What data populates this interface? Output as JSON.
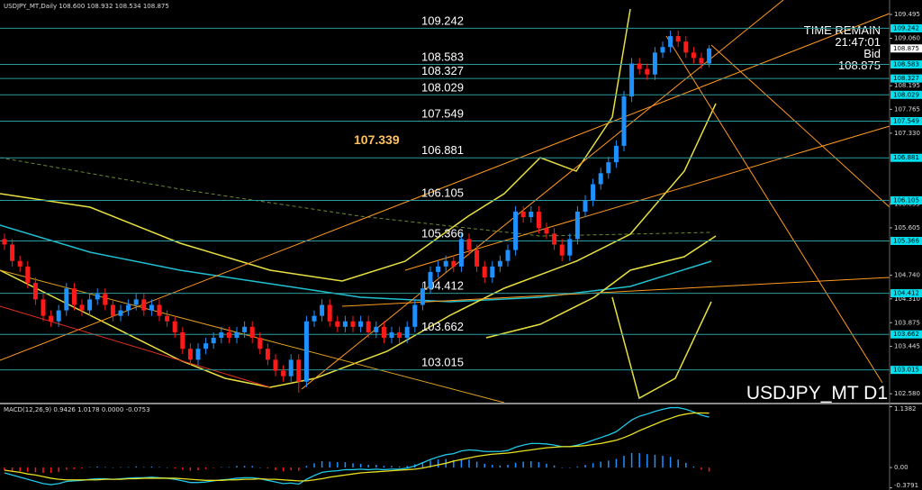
{
  "chart_data": [
    {
      "type": "candlestick",
      "title": "USDJPY_MT,Daily  108.600 108.932 108.534 108.875",
      "up_color": "#1e90ff",
      "down_color": "#ff1a1a",
      "ohlc": [
        [
          105.4,
          105.5,
          105.2,
          105.3
        ],
        [
          105.3,
          105.4,
          104.9,
          105.0
        ],
        [
          105.0,
          105.1,
          104.8,
          104.9
        ],
        [
          104.9,
          105.0,
          104.5,
          104.6
        ],
        [
          104.6,
          104.7,
          104.2,
          104.3
        ],
        [
          104.3,
          104.4,
          103.9,
          104.0
        ],
        [
          104.0,
          104.1,
          103.8,
          103.9
        ],
        [
          103.9,
          104.2,
          103.8,
          104.1
        ],
        [
          104.1,
          104.6,
          104.0,
          104.5
        ],
        [
          104.5,
          104.6,
          104.1,
          104.2
        ],
        [
          104.2,
          104.3,
          104.0,
          104.1
        ],
        [
          104.1,
          104.4,
          104.0,
          104.3
        ],
        [
          104.3,
          104.5,
          104.2,
          104.4
        ],
        [
          104.4,
          104.5,
          104.1,
          104.2
        ],
        [
          104.2,
          104.3,
          103.9,
          104.0
        ],
        [
          104.0,
          104.2,
          103.9,
          104.1
        ],
        [
          104.1,
          104.3,
          104.0,
          104.2
        ],
        [
          104.2,
          104.4,
          104.1,
          104.3
        ],
        [
          104.3,
          104.4,
          104.0,
          104.1
        ],
        [
          104.1,
          104.3,
          104.0,
          104.2
        ],
        [
          104.2,
          104.3,
          103.9,
          104.0
        ],
        [
          104.0,
          104.1,
          103.8,
          103.9
        ],
        [
          103.9,
          104.0,
          103.6,
          103.7
        ],
        [
          103.7,
          103.8,
          103.3,
          103.4
        ],
        [
          103.4,
          103.5,
          103.1,
          103.2
        ],
        [
          103.2,
          103.5,
          103.1,
          103.4
        ],
        [
          103.4,
          103.6,
          103.3,
          103.5
        ],
        [
          103.5,
          103.7,
          103.4,
          103.6
        ],
        [
          103.6,
          103.8,
          103.5,
          103.7
        ],
        [
          103.7,
          103.8,
          103.5,
          103.6
        ],
        [
          103.6,
          103.8,
          103.5,
          103.7
        ],
        [
          103.7,
          103.9,
          103.6,
          103.8
        ],
        [
          103.8,
          103.9,
          103.5,
          103.6
        ],
        [
          103.6,
          103.7,
          103.3,
          103.4
        ],
        [
          103.4,
          103.5,
          103.1,
          103.2
        ],
        [
          103.2,
          103.3,
          102.9,
          103.0
        ],
        [
          103.0,
          103.1,
          102.8,
          102.9
        ],
        [
          102.9,
          103.3,
          102.8,
          103.2
        ],
        [
          103.2,
          103.3,
          102.6,
          102.8
        ],
        [
          102.8,
          104.0,
          102.7,
          103.9
        ],
        [
          103.9,
          104.1,
          103.8,
          104.0
        ],
        [
          104.0,
          104.3,
          103.9,
          104.2
        ],
        [
          104.2,
          104.3,
          103.8,
          103.9
        ],
        [
          103.9,
          104.0,
          103.7,
          103.8
        ],
        [
          103.8,
          104.0,
          103.7,
          103.9
        ],
        [
          103.9,
          104.0,
          103.7,
          103.8
        ],
        [
          103.8,
          104.0,
          103.7,
          103.9
        ],
        [
          103.9,
          104.0,
          103.6,
          103.7
        ],
        [
          103.7,
          103.9,
          103.6,
          103.8
        ],
        [
          103.8,
          103.9,
          103.5,
          103.6
        ],
        [
          103.6,
          103.8,
          103.5,
          103.7
        ],
        [
          103.7,
          103.8,
          103.5,
          103.6
        ],
        [
          103.6,
          103.9,
          103.5,
          103.8
        ],
        [
          103.8,
          104.3,
          103.7,
          104.2
        ],
        [
          104.2,
          104.6,
          104.1,
          104.5
        ],
        [
          104.5,
          104.9,
          104.4,
          104.8
        ],
        [
          104.8,
          105.0,
          104.7,
          104.9
        ],
        [
          104.9,
          105.1,
          104.8,
          105.0
        ],
        [
          105.0,
          105.1,
          104.8,
          104.9
        ],
        [
          104.9,
          105.5,
          104.8,
          105.4
        ],
        [
          105.4,
          105.5,
          105.1,
          105.2
        ],
        [
          105.2,
          105.3,
          104.8,
          104.9
        ],
        [
          104.9,
          105.0,
          104.6,
          104.7
        ],
        [
          104.7,
          105.0,
          104.6,
          104.9
        ],
        [
          104.9,
          105.1,
          104.8,
          105.0
        ],
        [
          105.0,
          105.3,
          104.9,
          105.2
        ],
        [
          105.2,
          106.0,
          105.1,
          105.9
        ],
        [
          105.9,
          106.0,
          105.7,
          105.8
        ],
        [
          105.8,
          106.0,
          105.7,
          105.9
        ],
        [
          105.9,
          106.0,
          105.5,
          105.6
        ],
        [
          105.6,
          105.7,
          105.4,
          105.5
        ],
        [
          105.5,
          105.6,
          105.2,
          105.3
        ],
        [
          105.3,
          105.4,
          105.0,
          105.1
        ],
        [
          105.1,
          105.5,
          105.0,
          105.4
        ],
        [
          105.4,
          106.0,
          105.3,
          105.9
        ],
        [
          105.9,
          106.2,
          105.8,
          106.1
        ],
        [
          106.1,
          106.5,
          106.0,
          106.4
        ],
        [
          106.4,
          106.7,
          106.3,
          106.6
        ],
        [
          106.6,
          106.9,
          106.5,
          106.8
        ],
        [
          106.8,
          107.2,
          106.7,
          107.1
        ],
        [
          107.1,
          108.1,
          107.0,
          108.0
        ],
        [
          108.0,
          108.7,
          107.9,
          108.6
        ],
        [
          108.6,
          108.7,
          108.4,
          108.5
        ],
        [
          108.5,
          108.6,
          108.3,
          108.4
        ],
        [
          108.4,
          108.9,
          108.3,
          108.8
        ],
        [
          108.8,
          109.0,
          108.7,
          108.9
        ],
        [
          108.9,
          109.2,
          108.8,
          109.1
        ],
        [
          109.1,
          109.2,
          108.9,
          109.0
        ],
        [
          109.0,
          109.1,
          108.7,
          108.8
        ],
        [
          108.8,
          108.9,
          108.6,
          108.7
        ],
        [
          108.7,
          108.8,
          108.5,
          108.6
        ],
        [
          108.6,
          108.932,
          108.534,
          108.875
        ]
      ],
      "ylim": [
        102.418,
        109.758
      ],
      "yticks": [
        109.495,
        {
          "value": 109.06,
          "label": "109.060"
        },
        108.195,
        107.765,
        {
          "value": 107.33,
          "label": "107.330"
        },
        106.035,
        105.605,
        {
          "value": 104.74,
          "label": "104.740"
        },
        {
          "value": 104.31,
          "label": "104.310"
        },
        103.875,
        103.445,
        {
          "value": 102.58,
          "label": "102.580"
        }
      ],
      "levels": [
        109.242,
        108.583,
        108.327,
        108.029,
        107.549,
        106.881,
        106.105,
        105.366,
        104.412,
        103.662,
        103.015
      ],
      "level_color": "#2a9a9a",
      "annotation": "107.339",
      "annotation_color": "#ffc060",
      "current": 108.875
    },
    {
      "type": "macd",
      "title": "MACD(12,26,9) 0.9426 1.0178 0.0000 -0.0753",
      "ylim": [
        -0.42,
        1.18
      ],
      "yticks": [
        1.1382,
        {
          "value": 0,
          "label": "0.00"
        },
        -0.3791
      ],
      "histogram": {
        "up_color": "#1e90ff",
        "down_color": "#ff1a1a",
        "values": [
          -0.05,
          -0.06,
          -0.07,
          -0.08,
          -0.09,
          -0.1,
          -0.1,
          -0.08,
          -0.04,
          -0.03,
          -0.02,
          0.01,
          0.02,
          0.01,
          0.0,
          0.01,
          0.01,
          0.02,
          0.01,
          0.02,
          0.01,
          0.0,
          -0.02,
          -0.04,
          -0.06,
          -0.05,
          -0.03,
          -0.01,
          0.01,
          0.01,
          0.03,
          0.03,
          0.03,
          0.0,
          -0.02,
          -0.05,
          -0.07,
          -0.05,
          -0.06,
          0.03,
          0.08,
          0.12,
          0.11,
          0.1,
          0.1,
          0.08,
          0.07,
          0.05,
          0.05,
          0.03,
          0.03,
          0.02,
          0.03,
          0.06,
          0.1,
          0.13,
          0.15,
          0.16,
          0.14,
          0.16,
          0.15,
          0.11,
          0.07,
          0.05,
          0.04,
          0.05,
          0.09,
          0.11,
          0.12,
          0.1,
          0.07,
          0.04,
          0.0,
          0.0,
          0.02,
          0.05,
          0.08,
          0.11,
          0.13,
          0.16,
          0.22,
          0.27,
          0.27,
          0.25,
          0.24,
          0.22,
          0.2,
          0.15,
          0.09,
          0.02,
          -0.04,
          -0.0753
        ]
      },
      "lines": [
        {
          "color": "#20c8e8",
          "values": [
            -0.1,
            -0.14,
            -0.18,
            -0.22,
            -0.26,
            -0.3,
            -0.32,
            -0.3,
            -0.26,
            -0.25,
            -0.24,
            -0.22,
            -0.21,
            -0.21,
            -0.22,
            -0.21,
            -0.2,
            -0.19,
            -0.19,
            -0.18,
            -0.19,
            -0.2,
            -0.22,
            -0.25,
            -0.28,
            -0.28,
            -0.27,
            -0.25,
            -0.23,
            -0.22,
            -0.2,
            -0.19,
            -0.19,
            -0.21,
            -0.24,
            -0.27,
            -0.3,
            -0.29,
            -0.31,
            -0.22,
            -0.15,
            -0.09,
            -0.07,
            -0.06,
            -0.04,
            -0.04,
            -0.03,
            -0.04,
            -0.03,
            -0.04,
            -0.03,
            -0.03,
            -0.01,
            0.03,
            0.09,
            0.15,
            0.2,
            0.24,
            0.26,
            0.31,
            0.33,
            0.32,
            0.3,
            0.3,
            0.3,
            0.32,
            0.38,
            0.42,
            0.45,
            0.45,
            0.44,
            0.42,
            0.39,
            0.39,
            0.42,
            0.46,
            0.51,
            0.56,
            0.61,
            0.67,
            0.78,
            0.89,
            0.96,
            1.0,
            1.05,
            1.09,
            1.12,
            1.12,
            1.09,
            1.04,
            0.98,
            0.9426
          ]
        },
        {
          "color": "#e8e020",
          "values": [
            -0.05,
            -0.07,
            -0.09,
            -0.12,
            -0.14,
            -0.17,
            -0.2,
            -0.22,
            -0.23,
            -0.23,
            -0.23,
            -0.23,
            -0.23,
            -0.22,
            -0.22,
            -0.22,
            -0.21,
            -0.21,
            -0.2,
            -0.2,
            -0.2,
            -0.2,
            -0.2,
            -0.21,
            -0.22,
            -0.23,
            -0.24,
            -0.24,
            -0.24,
            -0.23,
            -0.23,
            -0.22,
            -0.22,
            -0.21,
            -0.22,
            -0.22,
            -0.23,
            -0.24,
            -0.25,
            -0.25,
            -0.23,
            -0.21,
            -0.18,
            -0.16,
            -0.14,
            -0.12,
            -0.1,
            -0.09,
            -0.08,
            -0.07,
            -0.06,
            -0.05,
            -0.04,
            -0.03,
            -0.01,
            0.02,
            0.05,
            0.08,
            0.12,
            0.15,
            0.18,
            0.21,
            0.23,
            0.25,
            0.26,
            0.27,
            0.29,
            0.31,
            0.33,
            0.35,
            0.37,
            0.38,
            0.39,
            0.39,
            0.4,
            0.41,
            0.43,
            0.45,
            0.48,
            0.51,
            0.56,
            0.62,
            0.69,
            0.75,
            0.81,
            0.87,
            0.92,
            0.97,
            1.0,
            1.02,
            1.02,
            1.0178
          ]
        }
      ]
    }
  ],
  "overlay": {
    "time_label": "TIME REMAIN",
    "time": "21:47:01",
    "bid_label": "Bid",
    "bid": 108.875,
    "symbol": "USDJPY_MT D1"
  }
}
